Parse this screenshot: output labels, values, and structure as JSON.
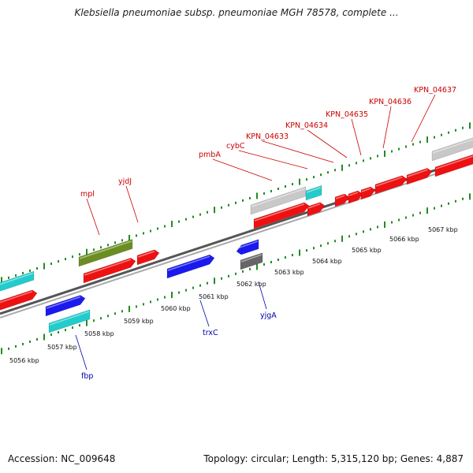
{
  "title": "Klebsiella pneumoniae subsp. pneumoniae MGH 78578, complete ...",
  "footer": {
    "accession": "Accession: NC_009648",
    "summary": "Topology: circular; Length: 5,315,120 bp; Genes: 4,887"
  },
  "colors": {
    "forward": "#ee1111",
    "reverse": "#1a1aee",
    "cyan": "#22cccc",
    "olive": "#6b8e23",
    "gray": "#c8c8c8",
    "darkgray": "#666666",
    "ruler": "#228b22",
    "label_top": "#cc0000",
    "label_bottom": "#0000aa"
  },
  "ruler_labels": [
    "5056 kbp",
    "5057 kbp",
    "5058 kbp",
    "5059 kbp",
    "5060 kbp",
    "5061 kbp",
    "5062 kbp",
    "5063 kbp",
    "5064 kbp",
    "5065 kbp",
    "5066 kbp",
    "5067 kbp"
  ],
  "gene_labels_top": [
    "mpl",
    "yjdJ",
    "pmbA",
    "cybC",
    "KPN_04633",
    "KPN_04634",
    "KPN_04635",
    "KPN_04636",
    "KPN_04637"
  ],
  "gene_labels_bottom": [
    "fbp",
    "trxC",
    "yjgA"
  ]
}
